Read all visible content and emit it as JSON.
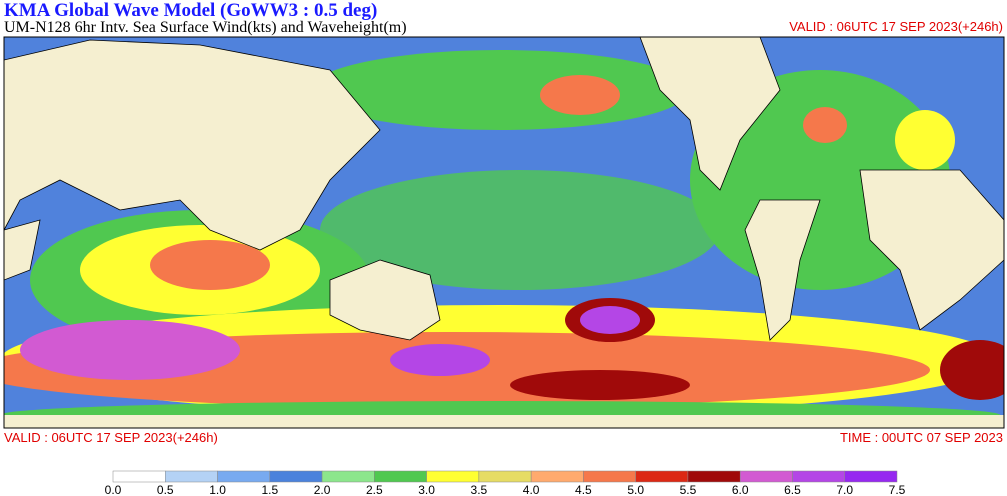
{
  "header": {
    "title": "KMA  Global Wave Model (GoWW3 : 0.5 deg)",
    "subtitle": "UM-N128  6hr Intv. Sea Surface Wind(kts) and Waveheight(m)",
    "valid_top": "VALID : 06UTC 17 SEP 2023(+246h)"
  },
  "footer": {
    "valid": "VALID : 06UTC 17 SEP 2023(+246h)",
    "time": "TIME : 00UTC 07 SEP 2023"
  },
  "colorbar": {
    "colors": [
      "#ffffff",
      "#b4d2f5",
      "#78aaf0",
      "#4b82dc",
      "#8ce68c",
      "#50c850",
      "#ffff32",
      "#e6dc64",
      "#ffaa6e",
      "#f5784b",
      "#dc2814",
      "#a00a0a",
      "#d25ad2",
      "#b446e6",
      "#9628f0"
    ],
    "labels": [
      "0.0",
      "0.5",
      "1.0",
      "1.5",
      "2.0",
      "2.5",
      "3.0",
      "3.5",
      "4.0",
      "4.5",
      "5.0",
      "5.5",
      "6.0",
      "6.5",
      "7.0",
      "7.5"
    ]
  }
}
